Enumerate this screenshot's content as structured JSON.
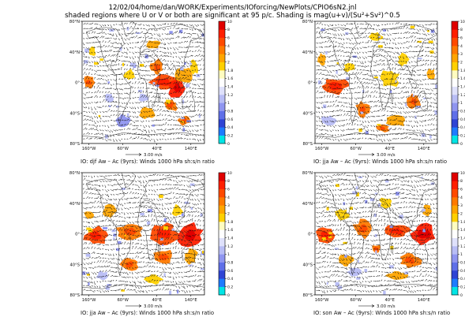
{
  "header": {
    "line1": "12/02/04/home/dan/WORK/Experiments/IOforcing/NewPlots/CPIO6sN2.jnl",
    "line2": "shaded regions where U or V or both are significant at 95 p/c. Shading is mag(u+v)/(Su²+Sv²)^0.5"
  },
  "colorbar_colors": [
    "#00e5e5",
    "#1e7bff",
    "#2f44d4",
    "#5f6fe8",
    "#8f95f0",
    "#b8bdf5",
    "#dfe1fb",
    "#ffffff",
    "#fffcc0",
    "#ffd000",
    "#ffa500",
    "#ff7a00",
    "#ff4a00",
    "#ff1f00",
    "#e00000"
  ],
  "panels": [
    {
      "id": "djf",
      "title": "IO: djf Aw – Ac (9yrs): Winds 1000 hPa sh:s/n ratio",
      "scale_label": "3.00 m/s",
      "colorbar_ticks": [
        "10",
        "8",
        "6",
        "4",
        "3",
        "2",
        "1.8",
        "1.6",
        "1.4",
        "1.2",
        "1",
        "0.8",
        "0.6",
        "0.4",
        "0.2",
        "0"
      ],
      "lat_ticks": [
        "80°N",
        "40°N",
        "0°",
        "40°S",
        "80°S"
      ],
      "lon_ticks": [
        "160°W",
        "60°W",
        "40°E",
        "140°E"
      ]
    },
    {
      "id": "jja-top",
      "title": "IO: jja Aw – Ac (9yrs): Winds 1000 hPa sh:s/n ratio",
      "scale_label": "3.00 m/s",
      "colorbar_ticks": [
        "10",
        "8",
        "6",
        "4",
        "3",
        "2",
        "1.8",
        "1.6",
        "1.4",
        "1.2",
        "1",
        "0.8",
        "0.6",
        "0.4",
        "0.2",
        "0"
      ],
      "lat_ticks": [
        "80°N",
        "40°N",
        "0°",
        "40°S",
        "80°S"
      ],
      "lon_ticks": [
        "160°W",
        "60°W",
        "40°E",
        "140°E"
      ]
    },
    {
      "id": "jja-bottom",
      "title": "IO: jja Aw – Ac (9yrs): Winds 1000 hPa sh:s/n ratio",
      "scale_label": "3.00 m/s",
      "colorbar_ticks": [
        "10",
        "8",
        "6",
        "4",
        "3",
        "2",
        "1.8",
        "1.6",
        "1.4",
        "1.2",
        "1",
        "0.8",
        "0.6",
        "0.4",
        "0.2",
        "0"
      ],
      "lat_ticks": [
        "80°N",
        "40°N",
        "0°",
        "40°S",
        "80°S"
      ],
      "lon_ticks": [
        "160°W",
        "60°W",
        "40°E",
        "140°E"
      ]
    },
    {
      "id": "son",
      "title": "IO: son Aw – Ac (9yrs): Winds 1000 hPa sh:s/n ratio",
      "scale_label": "3.00 m/s",
      "colorbar_ticks": [
        "10",
        "8",
        "6",
        "4",
        "3",
        "2",
        "1.8",
        "1.6",
        "1.4",
        "1.2",
        "1",
        "0.8",
        "0.6",
        "0.4",
        "0.2",
        "0"
      ],
      "lat_ticks": [
        "80°N",
        "40°N",
        "0°",
        "40°S",
        "80°S"
      ],
      "lon_ticks": [
        "160°W",
        "60°W",
        "40°E",
        "140°E"
      ]
    }
  ],
  "chart_data": [
    {
      "type": "heatmap",
      "panel": "djf",
      "title": "IO: djf Aw – Ac (9yrs): Winds 1000 hPa sh:s/n ratio",
      "xlim": [
        -180,
        180
      ],
      "ylim": [
        -80,
        80
      ],
      "x_ticks": [
        "160°W",
        "60°W",
        "40°E",
        "140°E"
      ],
      "y_ticks": [
        "80°N",
        "40°N",
        "0°",
        "40°S",
        "80°S"
      ],
      "colorbar": [
        0,
        0.2,
        0.4,
        0.6,
        0.8,
        1,
        1.2,
        1.4,
        1.6,
        1.8,
        2,
        3,
        4,
        6,
        8,
        10
      ],
      "vector_reference": "3.00 m/s"
    },
    {
      "type": "heatmap",
      "panel": "jja-top",
      "title": "IO: jja Aw – Ac (9yrs): Winds 1000 hPa sh:s/n ratio",
      "xlim": [
        -180,
        180
      ],
      "ylim": [
        -80,
        80
      ],
      "x_ticks": [
        "160°W",
        "60°W",
        "40°E",
        "140°E"
      ],
      "y_ticks": [
        "80°N",
        "40°N",
        "0°",
        "40°S",
        "80°S"
      ],
      "colorbar": [
        0,
        0.2,
        0.4,
        0.6,
        0.8,
        1,
        1.2,
        1.4,
        1.6,
        1.8,
        2,
        3,
        4,
        6,
        8,
        10
      ],
      "vector_reference": "3.00 m/s"
    },
    {
      "type": "heatmap",
      "panel": "jja-bottom",
      "title": "IO: jja Aw – Ac (9yrs): Winds 1000 hPa sh:s/n ratio",
      "xlim": [
        -180,
        180
      ],
      "ylim": [
        -80,
        80
      ],
      "x_ticks": [
        "160°W",
        "60°W",
        "40°E",
        "140°E"
      ],
      "y_ticks": [
        "80°N",
        "40°N",
        "0°",
        "40°S",
        "80°S"
      ],
      "colorbar": [
        0,
        0.2,
        0.4,
        0.6,
        0.8,
        1,
        1.2,
        1.4,
        1.6,
        1.8,
        2,
        3,
        4,
        6,
        8,
        10
      ],
      "vector_reference": "3.00 m/s"
    },
    {
      "type": "heatmap",
      "panel": "son",
      "title": "IO: son Aw – Ac (9yrs): Winds 1000 hPa sh:s/n ratio",
      "xlim": [
        -180,
        180
      ],
      "ylim": [
        -80,
        80
      ],
      "x_ticks": [
        "160°W",
        "60°W",
        "40°E",
        "140°E"
      ],
      "y_ticks": [
        "80°N",
        "40°N",
        "0°",
        "40°S",
        "80°S"
      ],
      "colorbar": [
        0,
        0.2,
        0.4,
        0.6,
        0.8,
        1,
        1.2,
        1.4,
        1.6,
        1.8,
        2,
        3,
        4,
        6,
        8,
        10
      ],
      "vector_reference": "3.00 m/s"
    }
  ]
}
